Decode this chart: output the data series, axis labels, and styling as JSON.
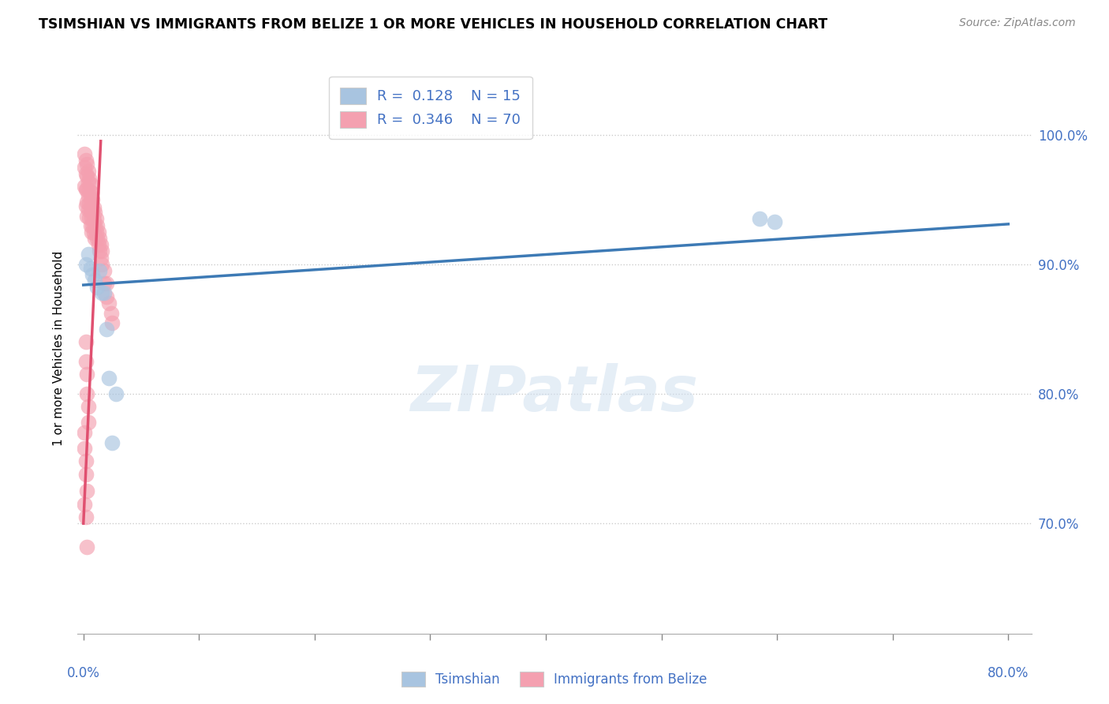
{
  "title": "TSIMSHIAN VS IMMIGRANTS FROM BELIZE 1 OR MORE VEHICLES IN HOUSEHOLD CORRELATION CHART",
  "source": "Source: ZipAtlas.com",
  "ylabel": "1 or more Vehicles in Household",
  "xlim": [
    -0.005,
    0.82
  ],
  "ylim": [
    0.615,
    1.055
  ],
  "yticks": [
    0.7,
    0.8,
    0.9,
    1.0
  ],
  "xticks": [
    0.0,
    0.1,
    0.2,
    0.3,
    0.4,
    0.5,
    0.6,
    0.7,
    0.8
  ],
  "blue_R": 0.128,
  "blue_N": 15,
  "pink_R": 0.346,
  "pink_N": 70,
  "blue_color": "#a8c4e0",
  "pink_color": "#f4a0b0",
  "blue_line_color": "#3d7ab5",
  "pink_line_color": "#e05070",
  "watermark": "ZIPatlas",
  "blue_line_x0": 0.0,
  "blue_line_y0": 0.884,
  "blue_line_x1": 0.8,
  "blue_line_y1": 0.931,
  "pink_line_x0": 0.0,
  "pink_line_y0": 0.7,
  "pink_line_x1": 0.015,
  "pink_line_y1": 0.995,
  "blue_points_x": [
    0.002,
    0.004,
    0.006,
    0.008,
    0.01,
    0.012,
    0.014,
    0.016,
    0.018,
    0.02,
    0.022,
    0.025,
    0.028,
    0.585,
    0.598
  ],
  "blue_points_y": [
    0.9,
    0.908,
    0.897,
    0.892,
    0.888,
    0.882,
    0.895,
    0.878,
    0.878,
    0.85,
    0.812,
    0.762,
    0.8,
    0.935,
    0.933
  ],
  "pink_points_x": [
    0.001,
    0.001,
    0.001,
    0.002,
    0.002,
    0.002,
    0.002,
    0.003,
    0.003,
    0.003,
    0.003,
    0.003,
    0.004,
    0.004,
    0.004,
    0.004,
    0.005,
    0.005,
    0.005,
    0.005,
    0.006,
    0.006,
    0.006,
    0.006,
    0.007,
    0.007,
    0.007,
    0.007,
    0.008,
    0.008,
    0.008,
    0.009,
    0.009,
    0.009,
    0.01,
    0.01,
    0.01,
    0.011,
    0.011,
    0.012,
    0.012,
    0.013,
    0.013,
    0.014,
    0.014,
    0.015,
    0.015,
    0.016,
    0.016,
    0.018,
    0.018,
    0.02,
    0.02,
    0.022,
    0.024,
    0.025,
    0.002,
    0.002,
    0.003,
    0.003,
    0.004,
    0.004,
    0.001,
    0.001,
    0.002,
    0.002,
    0.003,
    0.001,
    0.002,
    0.003
  ],
  "pink_points_y": [
    0.985,
    0.975,
    0.96,
    0.98,
    0.97,
    0.958,
    0.945,
    0.977,
    0.968,
    0.958,
    0.948,
    0.937,
    0.972,
    0.963,
    0.953,
    0.942,
    0.966,
    0.957,
    0.947,
    0.936,
    0.962,
    0.952,
    0.942,
    0.93,
    0.955,
    0.946,
    0.936,
    0.925,
    0.95,
    0.94,
    0.93,
    0.944,
    0.934,
    0.924,
    0.94,
    0.93,
    0.92,
    0.935,
    0.925,
    0.93,
    0.92,
    0.925,
    0.915,
    0.92,
    0.91,
    0.915,
    0.905,
    0.91,
    0.9,
    0.895,
    0.885,
    0.885,
    0.875,
    0.87,
    0.862,
    0.855,
    0.84,
    0.825,
    0.815,
    0.8,
    0.79,
    0.778,
    0.77,
    0.758,
    0.748,
    0.738,
    0.725,
    0.715,
    0.705,
    0.682
  ]
}
